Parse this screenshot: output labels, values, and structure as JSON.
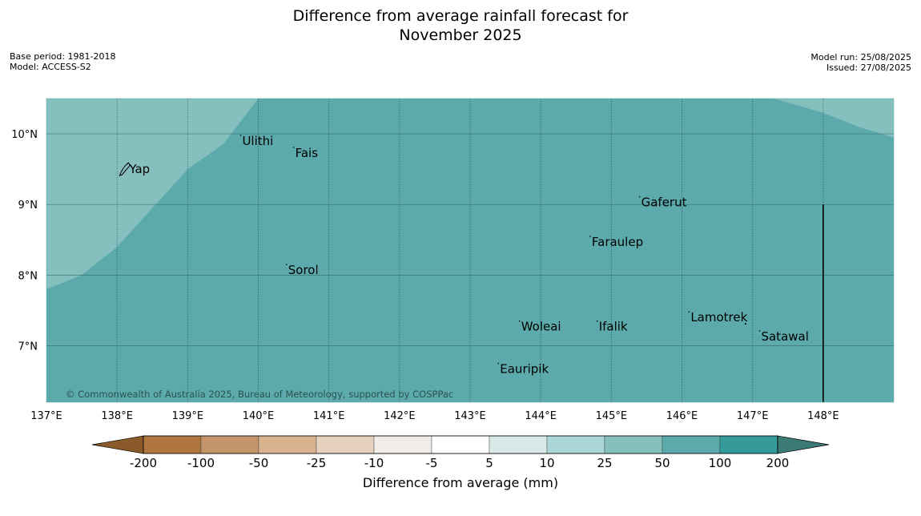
{
  "title_line1": "Difference from average rainfall forecast for",
  "title_line2": "November 2025",
  "base_period": "Base period: 1981-2018",
  "model": "Model: ACCESS-S2",
  "model_run": "Model run: 25/08/2025",
  "issued": "Issued: 27/08/2025",
  "copyright": "© Commonwealth of Australia 2025, Bureau of Meteorology, supported by COSPPac",
  "colors": {
    "anomaly_light": "#85c0bf",
    "anomaly_main": "#5caaab",
    "land_outline": "#000000",
    "gridline": "#2e5d5d"
  },
  "map": {
    "lon_range": [
      137,
      149
    ],
    "lat_range": [
      6.2,
      10.5
    ],
    "lon_ticks": [
      {
        "value": 137,
        "label": "137°E"
      },
      {
        "value": 138,
        "label": "138°E"
      },
      {
        "value": 139,
        "label": "139°E"
      },
      {
        "value": 140,
        "label": "140°E"
      },
      {
        "value": 141,
        "label": "141°E"
      },
      {
        "value": 142,
        "label": "142°E"
      },
      {
        "value": 143,
        "label": "143°E"
      },
      {
        "value": 144,
        "label": "144°E"
      },
      {
        "value": 145,
        "label": "145°E"
      },
      {
        "value": 146,
        "label": "146°E"
      },
      {
        "value": 147,
        "label": "147°E"
      },
      {
        "value": 148,
        "label": "148°E"
      }
    ],
    "lat_ticks": [
      {
        "value": 10,
        "label": "10°N"
      },
      {
        "value": 9,
        "label": "9°N"
      },
      {
        "value": 8,
        "label": "8°N"
      },
      {
        "value": 7,
        "label": "7°N"
      }
    ],
    "places": [
      {
        "name": "Yap",
        "lon": 138.15,
        "lat": 9.5
      },
      {
        "name": "Ulithi",
        "lon": 139.75,
        "lat": 9.9
      },
      {
        "name": "Fais",
        "lon": 140.5,
        "lat": 9.73
      },
      {
        "name": "Gaferut",
        "lon": 145.4,
        "lat": 9.03
      },
      {
        "name": "Faraulep",
        "lon": 144.7,
        "lat": 8.47
      },
      {
        "name": "Sorol",
        "lon": 140.4,
        "lat": 8.07
      },
      {
        "name": "Lamotrek",
        "lon": 146.1,
        "lat": 7.4
      },
      {
        "name": "Woleai",
        "lon": 143.7,
        "lat": 7.27
      },
      {
        "name": "Ifalik",
        "lon": 144.8,
        "lat": 7.27
      },
      {
        "name": "Satawal",
        "lon": 147.1,
        "lat": 7.13
      },
      {
        "name": "Eauripik",
        "lon": 143.4,
        "lat": 6.67
      }
    ],
    "boundary_line": {
      "lon": 148.0,
      "lat_from": 9.0,
      "lat_to": 6.2
    },
    "light_region": [
      [
        137.0,
        7.8
      ],
      [
        137.5,
        8.0
      ],
      [
        138.0,
        8.4
      ],
      [
        138.5,
        8.95
      ],
      [
        139.0,
        9.5
      ],
      [
        139.5,
        9.85
      ],
      [
        140.0,
        10.5
      ],
      [
        137.0,
        10.5
      ]
    ],
    "light_region_ne": [
      [
        147.3,
        10.5
      ],
      [
        148.0,
        10.3
      ],
      [
        148.5,
        10.1
      ],
      [
        149.0,
        9.95
      ],
      [
        149.0,
        10.5
      ]
    ]
  },
  "colorbar": {
    "label": "Difference from average (mm)",
    "colors": [
      "#8b5a2b",
      "#b07640",
      "#c4956a",
      "#d7b48f",
      "#e6d1be",
      "#f0ece7",
      "#ffffff",
      "#d7eae8",
      "#acd6d6",
      "#85c0bf",
      "#5caaab",
      "#349a9a",
      "#3c7a76"
    ],
    "ticks": [
      "-200",
      "-100",
      "-50",
      "-25",
      "-10",
      "-5",
      "5",
      "10",
      "25",
      "50",
      "100",
      "200"
    ]
  }
}
